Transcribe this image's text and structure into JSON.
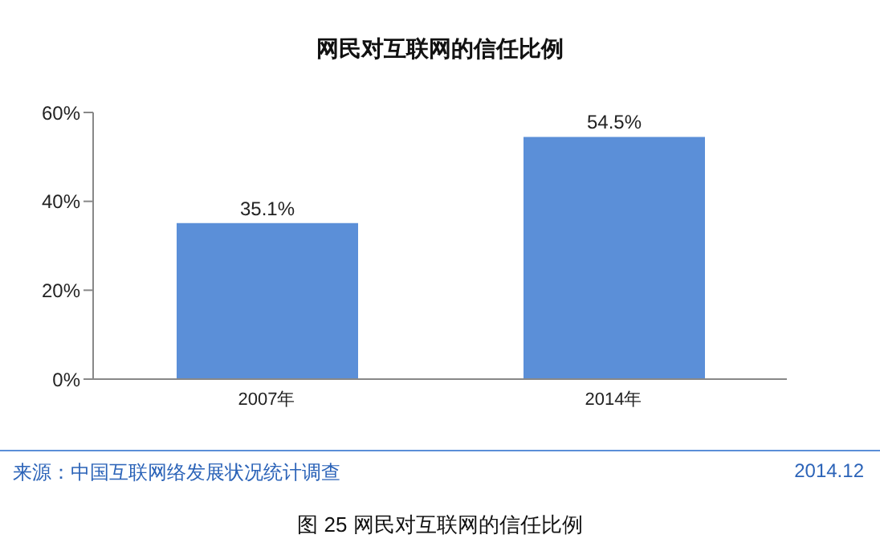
{
  "chart_data": {
    "type": "bar",
    "title": "网民对互联网的信任比例",
    "categories": [
      "2007年",
      "2014年"
    ],
    "values": [
      35.1,
      54.5
    ],
    "value_labels": [
      "35.1%",
      "54.5%"
    ],
    "color": "#5b8fd8",
    "ylim": [
      0,
      60
    ],
    "yticks": [
      {
        "value": 0,
        "label": "0%"
      },
      {
        "value": 20,
        "label": "20%"
      },
      {
        "value": 40,
        "label": "40%"
      },
      {
        "value": 60,
        "label": "60%"
      }
    ],
    "grid": false,
    "annotations": [
      "来源：中国互联网络发展状况统计调查",
      "2014.12",
      "图 25 网民对互联网的信任比例"
    ]
  }
}
